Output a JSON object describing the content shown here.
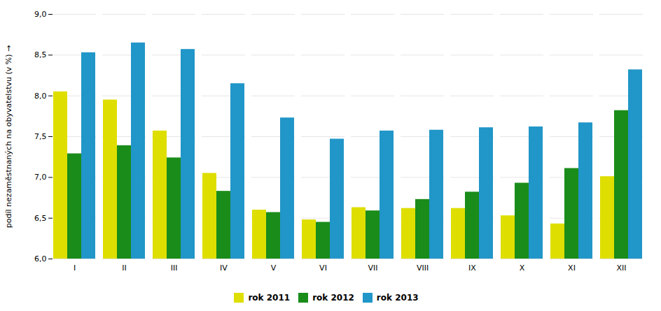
{
  "chart_data": {
    "type": "bar",
    "categories": [
      "I",
      "II",
      "III",
      "IV",
      "V",
      "VI",
      "VII",
      "VIII",
      "IX",
      "X",
      "XI",
      "XII"
    ],
    "series": [
      {
        "name": "rok 2011",
        "color": "#dede00",
        "values": [
          8.05,
          7.95,
          7.57,
          7.05,
          6.6,
          6.48,
          6.63,
          6.62,
          6.62,
          6.53,
          6.43,
          7.01
        ]
      },
      {
        "name": "rok 2012",
        "color": "#1a8c1a",
        "values": [
          7.29,
          7.39,
          7.24,
          6.83,
          6.57,
          6.45,
          6.59,
          6.73,
          6.82,
          6.93,
          7.11,
          7.82
        ]
      },
      {
        "name": "rok 2013",
        "color": "#2196c8",
        "values": [
          8.53,
          8.65,
          8.57,
          8.15,
          7.73,
          7.47,
          7.57,
          7.58,
          7.61,
          7.62,
          7.67,
          8.32
        ]
      }
    ],
    "ylabel": "podíl nezaměstnaných na obyvatelstvu (v %)",
    "ylim": [
      6.0,
      9.0
    ],
    "yticks": [
      {
        "value": 6.0,
        "label": "6,0"
      },
      {
        "value": 6.5,
        "label": "6,5"
      },
      {
        "value": 7.0,
        "label": "7,0"
      },
      {
        "value": 7.5,
        "label": "7,5"
      },
      {
        "value": 8.0,
        "label": "8,0"
      },
      {
        "value": 8.5,
        "label": "8,5"
      },
      {
        "value": 9.0,
        "label": "9,0"
      }
    ],
    "grid": true,
    "legend": "bottom"
  }
}
